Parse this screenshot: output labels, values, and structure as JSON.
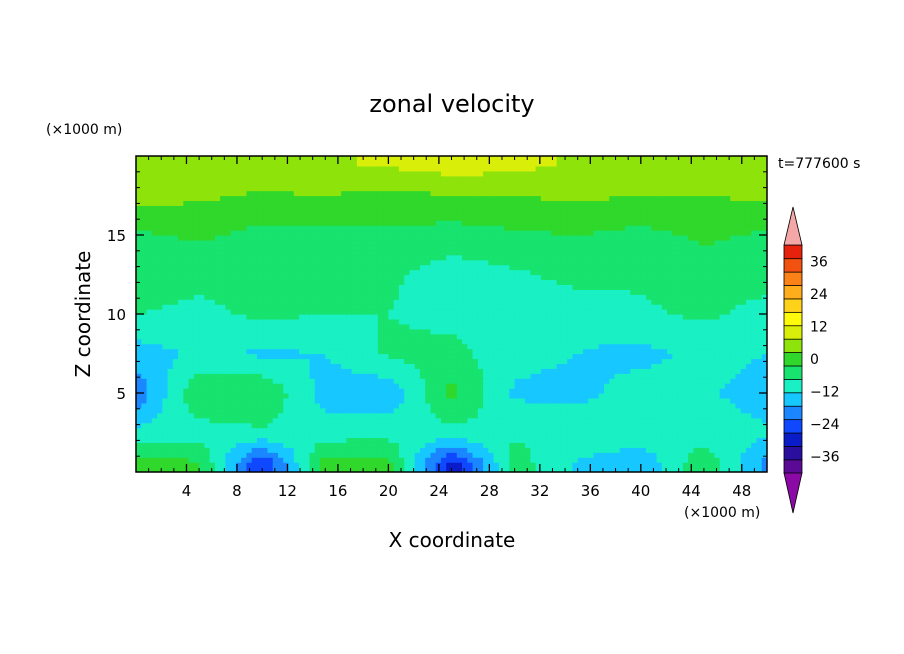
{
  "chart_data": {
    "type": "heatmap",
    "title": "zonal velocity",
    "xlabel": "X coordinate",
    "ylabel": "Z coordinate",
    "x_unit": "(×1000 m)",
    "y_unit": "(×1000 m)",
    "time_label": "t=777600 s",
    "xlim": [
      0,
      50
    ],
    "ylim": [
      0,
      20
    ],
    "x_ticks": [
      "4",
      "8",
      "12",
      "16",
      "20",
      "24",
      "28",
      "32",
      "36",
      "40",
      "44",
      "48"
    ],
    "y_ticks": [
      "5",
      "10",
      "15"
    ],
    "colorbar": {
      "min": -42,
      "max": 42,
      "step": 6,
      "extend": "both",
      "tick_labels": [
        "36",
        "24",
        "12",
        "0",
        "−12",
        "−24",
        "−36"
      ],
      "colors": [
        "#5b0a96",
        "#2a0e9e",
        "#0a1cc8",
        "#1048ff",
        "#1a86ff",
        "#16c8ff",
        "#19f0c4",
        "#17e36e",
        "#2fd82a",
        "#8ee30b",
        "#d9ef0a",
        "#fdfa0c",
        "#ffd21a",
        "#ffae1b",
        "#fb8216",
        "#f2520f",
        "#e6220c"
      ],
      "under_color": "#8b0aa5",
      "over_color": "#f4a7a7"
    },
    "field_description": "Zonal velocity field (m/s) in the x–z plane; mostly 0 to 12 near the middle, 12–24 near the top, -6 to -18 patches in the lower half and blue minima near the bottom around x≈10 and x≈24.",
    "field_samples": {
      "x": [
        0,
        5,
        10,
        15,
        20,
        25,
        30,
        35,
        40,
        45,
        50
      ],
      "z": [
        19.5,
        17.5,
        15,
        12.5,
        10,
        7.5,
        5,
        2.5,
        0.5
      ],
      "values": [
        [
          13,
          15,
          18,
          17,
          19,
          21,
          20,
          17,
          16,
          14,
          13
        ],
        [
          14,
          13,
          11,
          12,
          10,
          12,
          12,
          13,
          12,
          12,
          13
        ],
        [
          5,
          7,
          4,
          4,
          5,
          3,
          5,
          6,
          4,
          7,
          5
        ],
        [
          2,
          1,
          1,
          2,
          1,
          -3,
          -1,
          2,
          1,
          3,
          2
        ],
        [
          0,
          -1,
          1,
          0,
          0,
          -2,
          -5,
          -4,
          -1,
          1,
          -2
        ],
        [
          -9,
          -5,
          -7,
          -6,
          1,
          2,
          -4,
          -6,
          -8,
          -4,
          -6
        ],
        [
          -17,
          6,
          6,
          -9,
          -11,
          8,
          -7,
          -8,
          -3,
          -5,
          -9
        ],
        [
          -4,
          -3,
          -1,
          -3,
          -2,
          -2,
          -1,
          -1,
          -2,
          -3,
          -5
        ],
        [
          10,
          7,
          -25,
          9,
          8,
          -28,
          3,
          -7,
          -11,
          5,
          -14
        ]
      ]
    }
  }
}
